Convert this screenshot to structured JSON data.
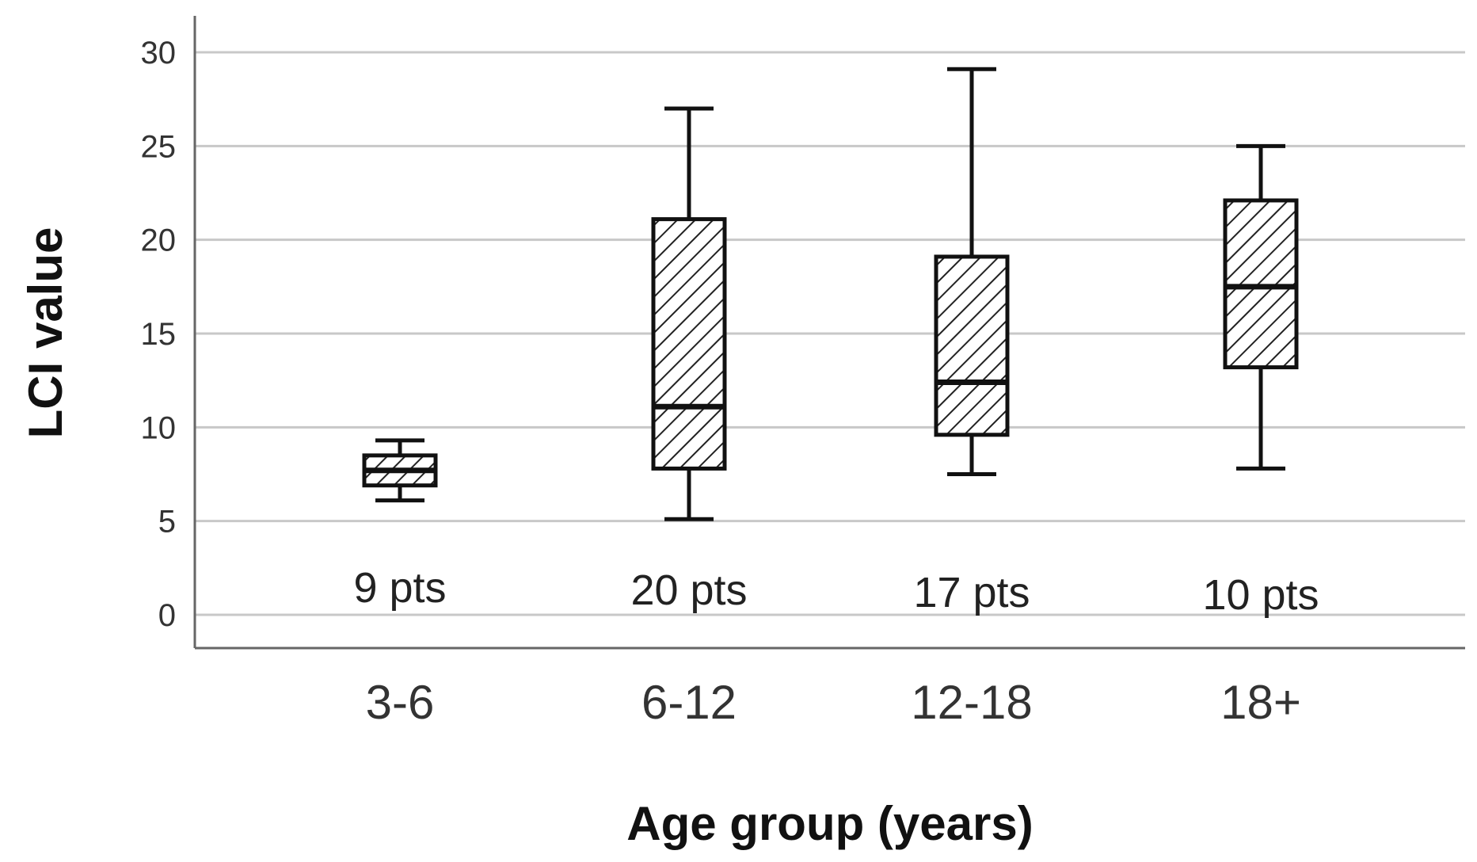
{
  "chart_data": {
    "type": "boxplot",
    "xlabel": "Age group (years)",
    "ylabel": "LCI value",
    "ylim": [
      0,
      30
    ],
    "yticks": [
      0,
      5,
      10,
      15,
      20,
      25,
      30
    ],
    "grid": true,
    "categories": [
      "3-6",
      "6-12",
      "12-18",
      "18+"
    ],
    "counts": [
      "9 pts",
      "20 pts",
      "17 pts",
      "10 pts"
    ],
    "boxes": [
      {
        "category": "3-6",
        "min": 6.1,
        "q1": 6.9,
        "median": 7.7,
        "q3": 8.5,
        "max": 9.3
      },
      {
        "category": "6-12",
        "min": 5.1,
        "q1": 7.8,
        "median": 11.1,
        "q3": 21.1,
        "max": 27.0
      },
      {
        "category": "12-18",
        "min": 7.5,
        "q1": 9.6,
        "median": 12.4,
        "q3": 19.1,
        "max": 29.1
      },
      {
        "category": "18+",
        "min": 7.8,
        "q1": 13.2,
        "median": 17.5,
        "q3": 22.1,
        "max": 25.0
      }
    ]
  }
}
